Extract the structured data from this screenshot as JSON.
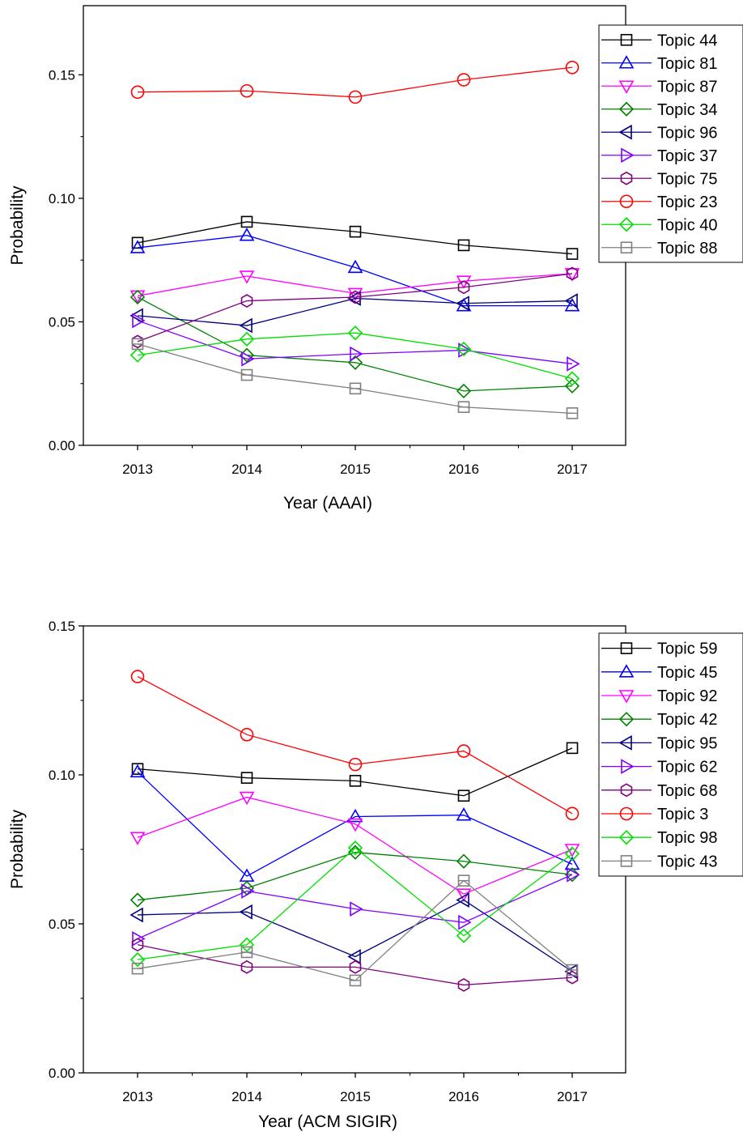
{
  "chart_data": [
    {
      "type": "line",
      "title": "",
      "xlabel": "Year (AAAI)",
      "ylabel": "Probability",
      "categories": [
        "2013",
        "2014",
        "2015",
        "2016",
        "2017"
      ],
      "ylim": [
        0,
        0.178
      ],
      "yticks": [
        "0.00",
        "0.05",
        "0.10",
        "0.15"
      ],
      "grid": false,
      "legend_position": "top-right",
      "series": [
        {
          "name": "Topic 44",
          "marker": "square",
          "color": "#000000",
          "values": [
            0.082,
            0.0905,
            0.0865,
            0.081,
            0.0775
          ]
        },
        {
          "name": "Topic 81",
          "marker": "triangle-up",
          "color": "#0000ff",
          "values": [
            0.08,
            0.085,
            0.072,
            0.0565,
            0.0565
          ]
        },
        {
          "name": "Topic 87",
          "marker": "triangle-down",
          "color": "#ff00ff",
          "values": [
            0.0605,
            0.0685,
            0.0615,
            0.0665,
            0.0695
          ]
        },
        {
          "name": "Topic 34",
          "marker": "diamond",
          "color": "#008000",
          "values": [
            0.06,
            0.0365,
            0.0335,
            0.022,
            0.024
          ]
        },
        {
          "name": "Topic 96",
          "marker": "triangle-left",
          "color": "#000080",
          "values": [
            0.0525,
            0.0485,
            0.0595,
            0.0575,
            0.0585
          ]
        },
        {
          "name": "Topic 37",
          "marker": "triangle-right",
          "color": "#8000ff",
          "values": [
            0.0505,
            0.035,
            0.037,
            0.0385,
            0.033
          ]
        },
        {
          "name": "Topic 75",
          "marker": "hexagon",
          "color": "#800080",
          "values": [
            0.042,
            0.0585,
            0.06,
            0.064,
            0.0695
          ]
        },
        {
          "name": "Topic 23",
          "marker": "circle",
          "color": "#ff0000",
          "values": [
            0.143,
            0.1435,
            0.141,
            0.148,
            0.153
          ]
        },
        {
          "name": "Topic 40",
          "marker": "diamond",
          "color": "#00e000",
          "values": [
            0.0365,
            0.043,
            0.0455,
            0.039,
            0.027
          ]
        },
        {
          "name": "Topic 88",
          "marker": "square-line",
          "color": "#808080",
          "values": [
            0.041,
            0.0285,
            0.023,
            0.0155,
            0.013
          ]
        }
      ]
    },
    {
      "type": "line",
      "title": "",
      "xlabel": "Year (ACM SIGIR)",
      "ylabel": "Probability",
      "categories": [
        "2013",
        "2014",
        "2015",
        "2016",
        "2017"
      ],
      "ylim": [
        0,
        0.15
      ],
      "yticks": [
        "0.00",
        "0.05",
        "0.10",
        "0.15"
      ],
      "grid": false,
      "legend_position": "top-right",
      "series": [
        {
          "name": "Topic 59",
          "marker": "square",
          "color": "#000000",
          "values": [
            0.102,
            0.099,
            0.098,
            0.093,
            0.109
          ]
        },
        {
          "name": "Topic 45",
          "marker": "triangle-up",
          "color": "#0000ff",
          "values": [
            0.101,
            0.066,
            0.086,
            0.0865,
            0.07
          ]
        },
        {
          "name": "Topic 92",
          "marker": "triangle-down",
          "color": "#ff00ff",
          "values": [
            0.079,
            0.0925,
            0.0835,
            0.06,
            0.075
          ]
        },
        {
          "name": "Topic 42",
          "marker": "diamond",
          "color": "#008000",
          "values": [
            0.058,
            0.062,
            0.074,
            0.071,
            0.0665
          ]
        },
        {
          "name": "Topic 95",
          "marker": "triangle-left",
          "color": "#000080",
          "values": [
            0.053,
            0.054,
            0.039,
            0.058,
            0.034
          ]
        },
        {
          "name": "Topic 62",
          "marker": "triangle-right",
          "color": "#8000ff",
          "values": [
            0.045,
            0.061,
            0.055,
            0.0505,
            0.0665
          ]
        },
        {
          "name": "Topic 68",
          "marker": "hexagon",
          "color": "#800080",
          "values": [
            0.043,
            0.0355,
            0.0355,
            0.0295,
            0.032
          ]
        },
        {
          "name": "Topic 3",
          "marker": "circle",
          "color": "#ff0000",
          "values": [
            0.133,
            0.1135,
            0.1035,
            0.108,
            0.087
          ]
        },
        {
          "name": "Topic 98",
          "marker": "diamond",
          "color": "#00e000",
          "values": [
            0.038,
            0.043,
            0.0755,
            0.046,
            0.0735
          ]
        },
        {
          "name": "Topic 43",
          "marker": "square-line",
          "color": "#808080",
          "values": [
            0.035,
            0.0405,
            0.031,
            0.0645,
            0.0345
          ]
        }
      ]
    }
  ]
}
